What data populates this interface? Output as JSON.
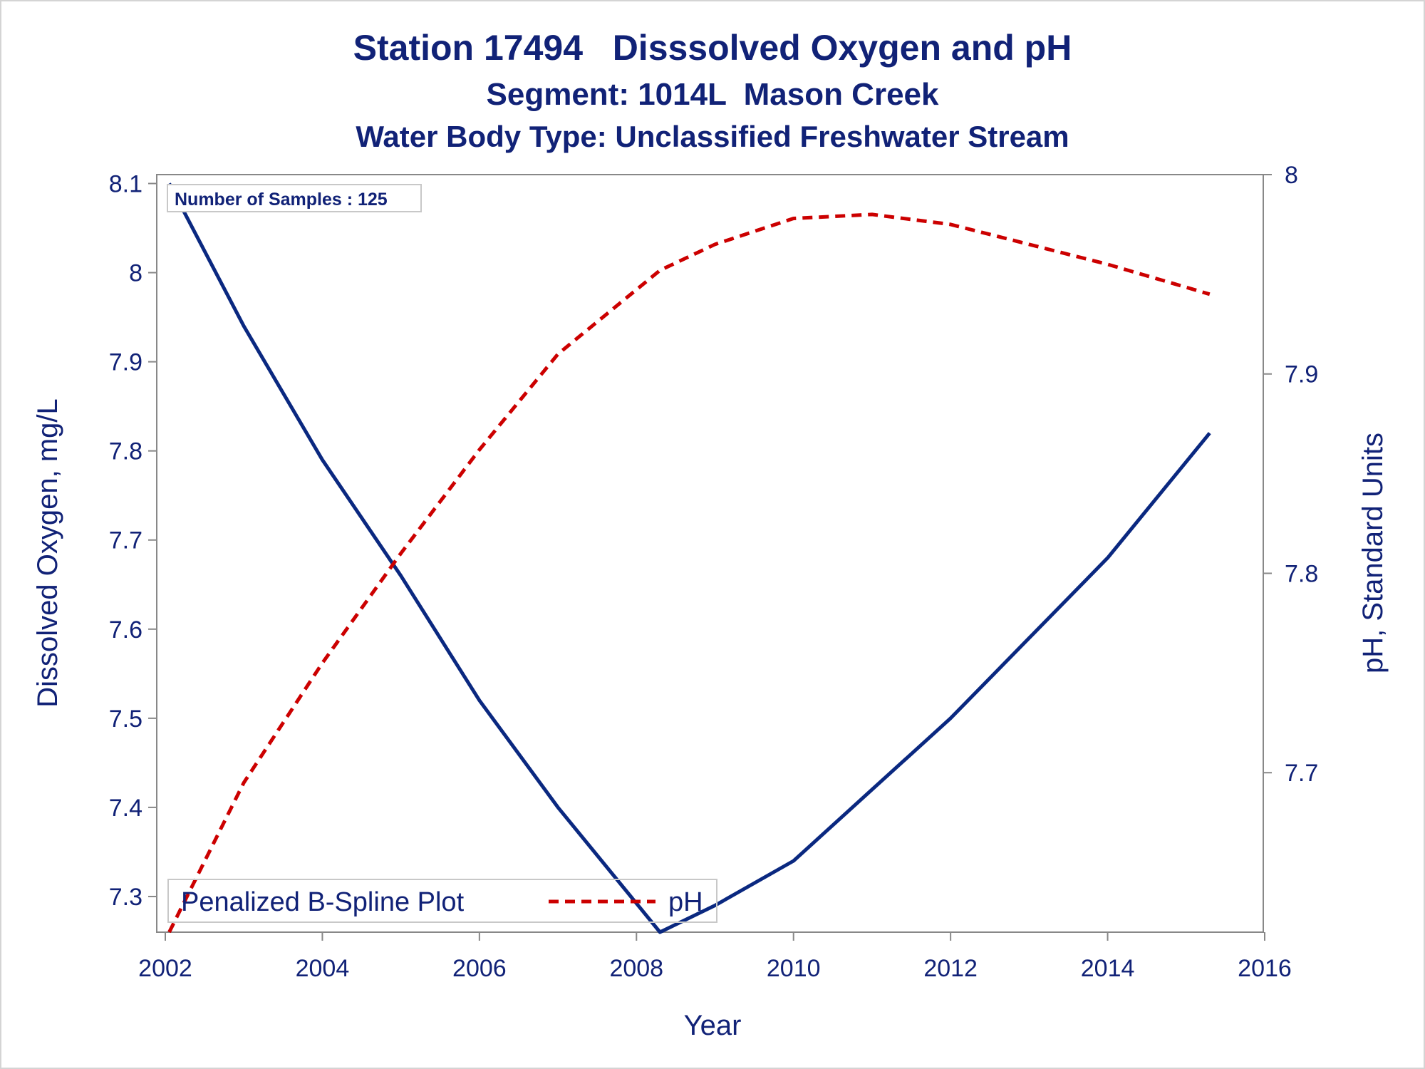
{
  "titles": {
    "line1": "Station 17494   Disssolved Oxygen and pH",
    "line2": "Segment: 1014L  Mason Creek",
    "line3": "Water Body Type: Unclassified Freshwater Stream"
  },
  "inset": {
    "text": "Number of Samples : 125"
  },
  "legend": {
    "entries": [
      {
        "label": "Penalized B-Spline Plot"
      },
      {
        "label": "pH"
      }
    ]
  },
  "colors": {
    "text": "#112277",
    "do_line": "#0a2880",
    "ph_line": "#cc0000",
    "axis": "#888888"
  },
  "chart_data": {
    "type": "line",
    "title": "Station 17494   Disssolved Oxygen and pH",
    "subtitle": [
      "Segment: 1014L  Mason Creek",
      "Water Body Type: Unclassified Freshwater Stream"
    ],
    "xlabel": "Year",
    "ylabel": "Dissolved Oxygen, mg/L",
    "y2label": "pH, Standard Units",
    "xlim": [
      2002,
      2016
    ],
    "ylim": [
      7.26,
      8.11
    ],
    "y2lim": [
      7.62,
      8.0
    ],
    "xticks": [
      2002,
      2004,
      2006,
      2008,
      2010,
      2012,
      2014,
      2016
    ],
    "yticks": [
      7.3,
      7.4,
      7.5,
      7.6,
      7.7,
      7.8,
      7.9,
      8.0,
      8.1
    ],
    "y2ticks": [
      7.7,
      7.8,
      7.9,
      8.0
    ],
    "legend_position": "bottom-left inside",
    "series": [
      {
        "name": "Penalized B-Spline Plot",
        "axis": "left",
        "style": "solid",
        "x": [
          2002.05,
          2003.0,
          2004.0,
          2005.0,
          2006.0,
          2007.0,
          2008.3,
          2009.0,
          2010.0,
          2011.0,
          2012.0,
          2013.0,
          2014.0,
          2015.3
        ],
        "y": [
          8.1,
          7.94,
          7.79,
          7.66,
          7.52,
          7.4,
          7.26,
          7.29,
          7.34,
          7.42,
          7.5,
          7.59,
          7.68,
          7.82
        ]
      },
      {
        "name": "pH",
        "axis": "right",
        "style": "dashed",
        "x": [
          2002.05,
          2003.0,
          2004.0,
          2005.0,
          2006.0,
          2007.0,
          2008.3,
          2009.0,
          2010.0,
          2011.0,
          2012.0,
          2013.0,
          2014.0,
          2015.3
        ],
        "y": [
          7.62,
          7.695,
          7.755,
          7.81,
          7.862,
          7.91,
          7.952,
          7.965,
          7.978,
          7.98,
          7.975,
          7.965,
          7.955,
          7.94
        ]
      }
    ]
  }
}
